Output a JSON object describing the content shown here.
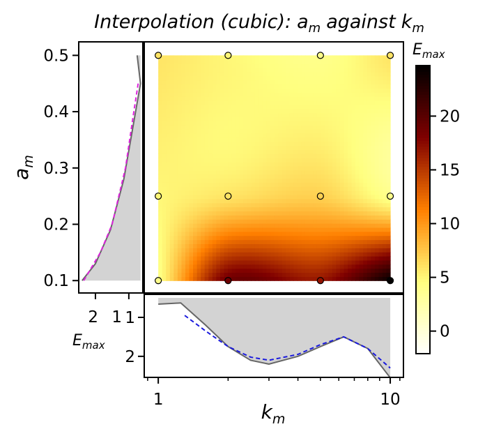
{
  "chart_data": [
    {
      "type": "heatmap",
      "title": "Interpolation (cubic): a_m against k_m",
      "title_parts": {
        "main": "Interpolation (cubic):",
        "a": "a",
        "a_sub": "m",
        "mid": "against",
        "k": "k",
        "k_sub": "m"
      },
      "xlabel": "k",
      "xlabel_sub": "m",
      "xscale": "log",
      "xlim": [
        0.87,
        11.4
      ],
      "ylabel": "a",
      "ylabel_sub": "m",
      "ylim": [
        0.078,
        0.524
      ],
      "x_ticks": [
        {
          "v": 1,
          "label": "1"
        },
        {
          "v": 10,
          "label": "10"
        }
      ],
      "y_ticks": [
        {
          "v": 0.1,
          "label": "0.1"
        },
        {
          "v": 0.2,
          "label": "0.2"
        },
        {
          "v": 0.3,
          "label": "0.3"
        },
        {
          "v": 0.4,
          "label": "0.4"
        },
        {
          "v": 0.5,
          "label": "0.5"
        }
      ],
      "grid_k": [
        1,
        2,
        5,
        10
      ],
      "grid_a": [
        0.1,
        0.25,
        0.5
      ],
      "grid_values": [
        [
          4,
          19,
          17,
          24.5
        ],
        [
          5,
          6,
          7,
          4
        ],
        [
          6,
          5,
          4,
          6
        ]
      ],
      "colormap": "afmhot_r",
      "colorbar": {
        "label": "E",
        "label_sub": "max",
        "range": [
          -2.1,
          24.7
        ],
        "ticks": [
          {
            "v": 0,
            "label": "0"
          },
          {
            "v": 5,
            "label": "5"
          },
          {
            "v": 10,
            "label": "10"
          },
          {
            "v": 15,
            "label": "15"
          },
          {
            "v": 20,
            "label": "20"
          }
        ]
      },
      "grid": false
    },
    {
      "type": "line",
      "panel": "left-marginal",
      "xlabel": "E",
      "xlabel_sub": "max",
      "xlim": [
        2.5,
        0.58
      ],
      "x_inverted": true,
      "x_ticks": [
        {
          "v": 2,
          "label": "2"
        },
        {
          "v": 1,
          "label": "1"
        }
      ],
      "fill_baseline": 0.65,
      "series": [
        {
          "style": "solid",
          "color": "#666666",
          "a": [
            0.1,
            0.13,
            0.19,
            0.28,
            0.45,
            0.5
          ],
          "E": [
            2.4,
            2.0,
            1.55,
            1.15,
            0.65,
            0.75
          ]
        },
        {
          "style": "dashed",
          "color": "#dd22dd",
          "a": [
            0.1,
            0.15,
            0.2,
            0.3,
            0.4,
            0.45
          ],
          "E": [
            2.35,
            1.85,
            1.5,
            1.1,
            0.85,
            0.72
          ]
        }
      ]
    },
    {
      "type": "line",
      "panel": "bottom-marginal",
      "ylabel": "E",
      "ylabel_sub": "max",
      "ylim": [
        0.41,
        2.54
      ],
      "y_inverted": true,
      "y_ticks": [
        {
          "v": 1,
          "label": "1"
        },
        {
          "v": 2,
          "label": "2"
        }
      ],
      "fill_baseline": 0.5,
      "series": [
        {
          "style": "solid",
          "color": "#666666",
          "k": [
            1,
            1.25,
            1.6,
            2,
            2.5,
            3,
            4,
            5,
            6.3,
            8,
            10
          ],
          "E": [
            0.66,
            0.63,
            1.2,
            1.75,
            2.1,
            2.2,
            2.0,
            1.75,
            1.5,
            1.8,
            2.55
          ]
        },
        {
          "style": "dashed",
          "color": "#1a1add",
          "k": [
            1.3,
            1.6,
            2,
            2.5,
            3,
            4,
            5,
            6.3,
            8,
            10
          ],
          "E": [
            0.95,
            1.35,
            1.75,
            2.02,
            2.1,
            1.95,
            1.7,
            1.5,
            1.8,
            2.3
          ]
        }
      ]
    }
  ]
}
